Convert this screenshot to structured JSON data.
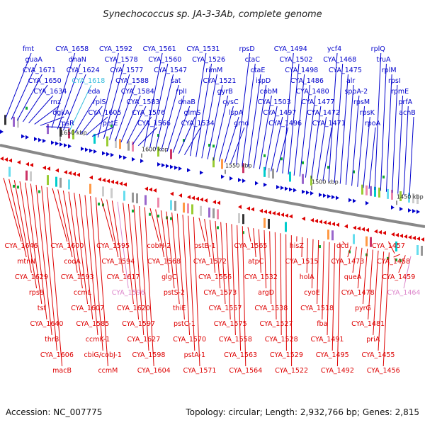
{
  "title": "Synechococcus sp. JA-3-3Ab, complete genome",
  "footer": {
    "accession": "Accession: NC_007775",
    "summary": "Topology: circular; Length: 2,932,766 bp; Genes: 2,815"
  },
  "colors": {
    "forward": "#0000cc",
    "reverse": "#dd0000",
    "backbone": "#888888",
    "highlight_cyan": "#33bbdd",
    "highlight_pink": "#dd88cc"
  },
  "kbp_markers": [
    "1650 kbp",
    "1600 kbp",
    "1550 kbp",
    "1500 kbp",
    "1450 kbp"
  ],
  "forward_labels": [
    "fmt",
    "guaA",
    "CYA_1671",
    "CYA_1650",
    "CYA_1634",
    "rnz",
    "dgkA",
    "rpsR",
    "CYA_1658",
    "dnaN",
    "CYA_1624",
    "CYA_1618",
    "eda",
    "rplS",
    "CYA_1605",
    "petE",
    "CYA_1592",
    "CYA_1578",
    "CYA_1577",
    "CYA_1588",
    "CYA_1584",
    "CYA_1583",
    "CYA_1576",
    "CYA_1566",
    "CYA_1561",
    "CYA_1560",
    "CYA_1547",
    "sat",
    "rplI",
    "dnaB",
    "glmS",
    "CYA_1534",
    "CYA_1531",
    "CYA_1526",
    "rimM",
    "CYA_1521",
    "gyrB",
    "cysC",
    "lspA",
    "gmd",
    "rpsD",
    "ctaC",
    "ctaE",
    "ispD",
    "cobM",
    "CYA_1503",
    "CYA_1497",
    "CYA_1496",
    "CYA_1494",
    "CYA_1502",
    "CYA_1498",
    "CYA_1486",
    "CYA_1480",
    "CYA_1477",
    "CYA_1472",
    "CYA_1471",
    "ycf4",
    "CYA_1468",
    "CYA_1475",
    "alr",
    "sppA-2",
    "rpsM",
    "rpsK",
    "rpoA",
    "rplQ",
    "truA",
    "rplM",
    "rpsI",
    "rpmE",
    "prfA",
    "acnB"
  ],
  "reverse_labels": [
    "CYA_1646",
    "mtnN",
    "CYA_1629",
    "rpsB",
    "tsf",
    "CYA_1640",
    "thrB",
    "CYA_1606",
    "macB",
    "CYA_1600",
    "codA",
    "CYA_1593",
    "ccmL",
    "CYA_1607",
    "CYA_1585",
    "ccmK-1",
    "cbiG/cobJ-1",
    "ccmM",
    "CYA_1595",
    "CYA_1594",
    "CYA_1617",
    "CYA_1596",
    "CYA_1620",
    "CYA_1597",
    "CYA_1627",
    "CYA_1598",
    "CYA_1604",
    "cobH-2",
    "CYA_1568",
    "glgC",
    "pstS-2",
    "thiE",
    "pstC-1",
    "CYA_1570",
    "pstA-1",
    "CYA_1571",
    "pstB-1",
    "CYA_1572",
    "CYA_1556",
    "CYA_1573",
    "CYA_1557",
    "CYA_1575",
    "CYA_1558",
    "CYA_1563",
    "CYA_1564",
    "CYA_1565",
    "atpC",
    "CYA_1532",
    "argD",
    "CYA_1538",
    "CYA_1527",
    "CYA_1528",
    "CYA_1529",
    "CYA_1522",
    "hisZ",
    "CYA_1515",
    "holA",
    "cyoE",
    "CYA_1518",
    "fba",
    "CYA_1491",
    "CYA_1495",
    "CYA_1492",
    "dcd",
    "CYA_1473",
    "queA",
    "CYA_1478",
    "pyrG",
    "CYA_1481",
    "priA",
    "CYA_1455",
    "CYA_1456",
    "CYA_1457",
    "CYA_1458",
    "CYA_1459",
    "CYA_1464"
  ]
}
